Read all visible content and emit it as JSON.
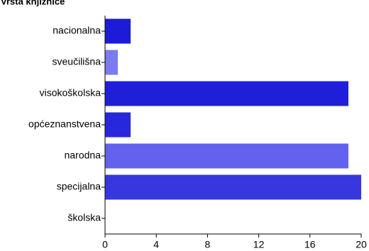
{
  "chart_data": {
    "type": "bar",
    "orientation": "horizontal",
    "title": "Vrsta knjižnice",
    "categories": [
      "nacionalna",
      "sveučilišna",
      "visokoškolska",
      "općeznanstvena",
      "narodna",
      "specijalna",
      "školska"
    ],
    "values": [
      2,
      1,
      19,
      2,
      19,
      20,
      0
    ],
    "colors": [
      "#1c1cd8",
      "#7b7bef",
      "#1f1fd9",
      "#2727dc",
      "#6262ee",
      "#3737df",
      "#3737df"
    ],
    "xlim": [
      0,
      20
    ],
    "xticks": [
      0,
      4,
      8,
      12,
      16,
      20
    ]
  }
}
